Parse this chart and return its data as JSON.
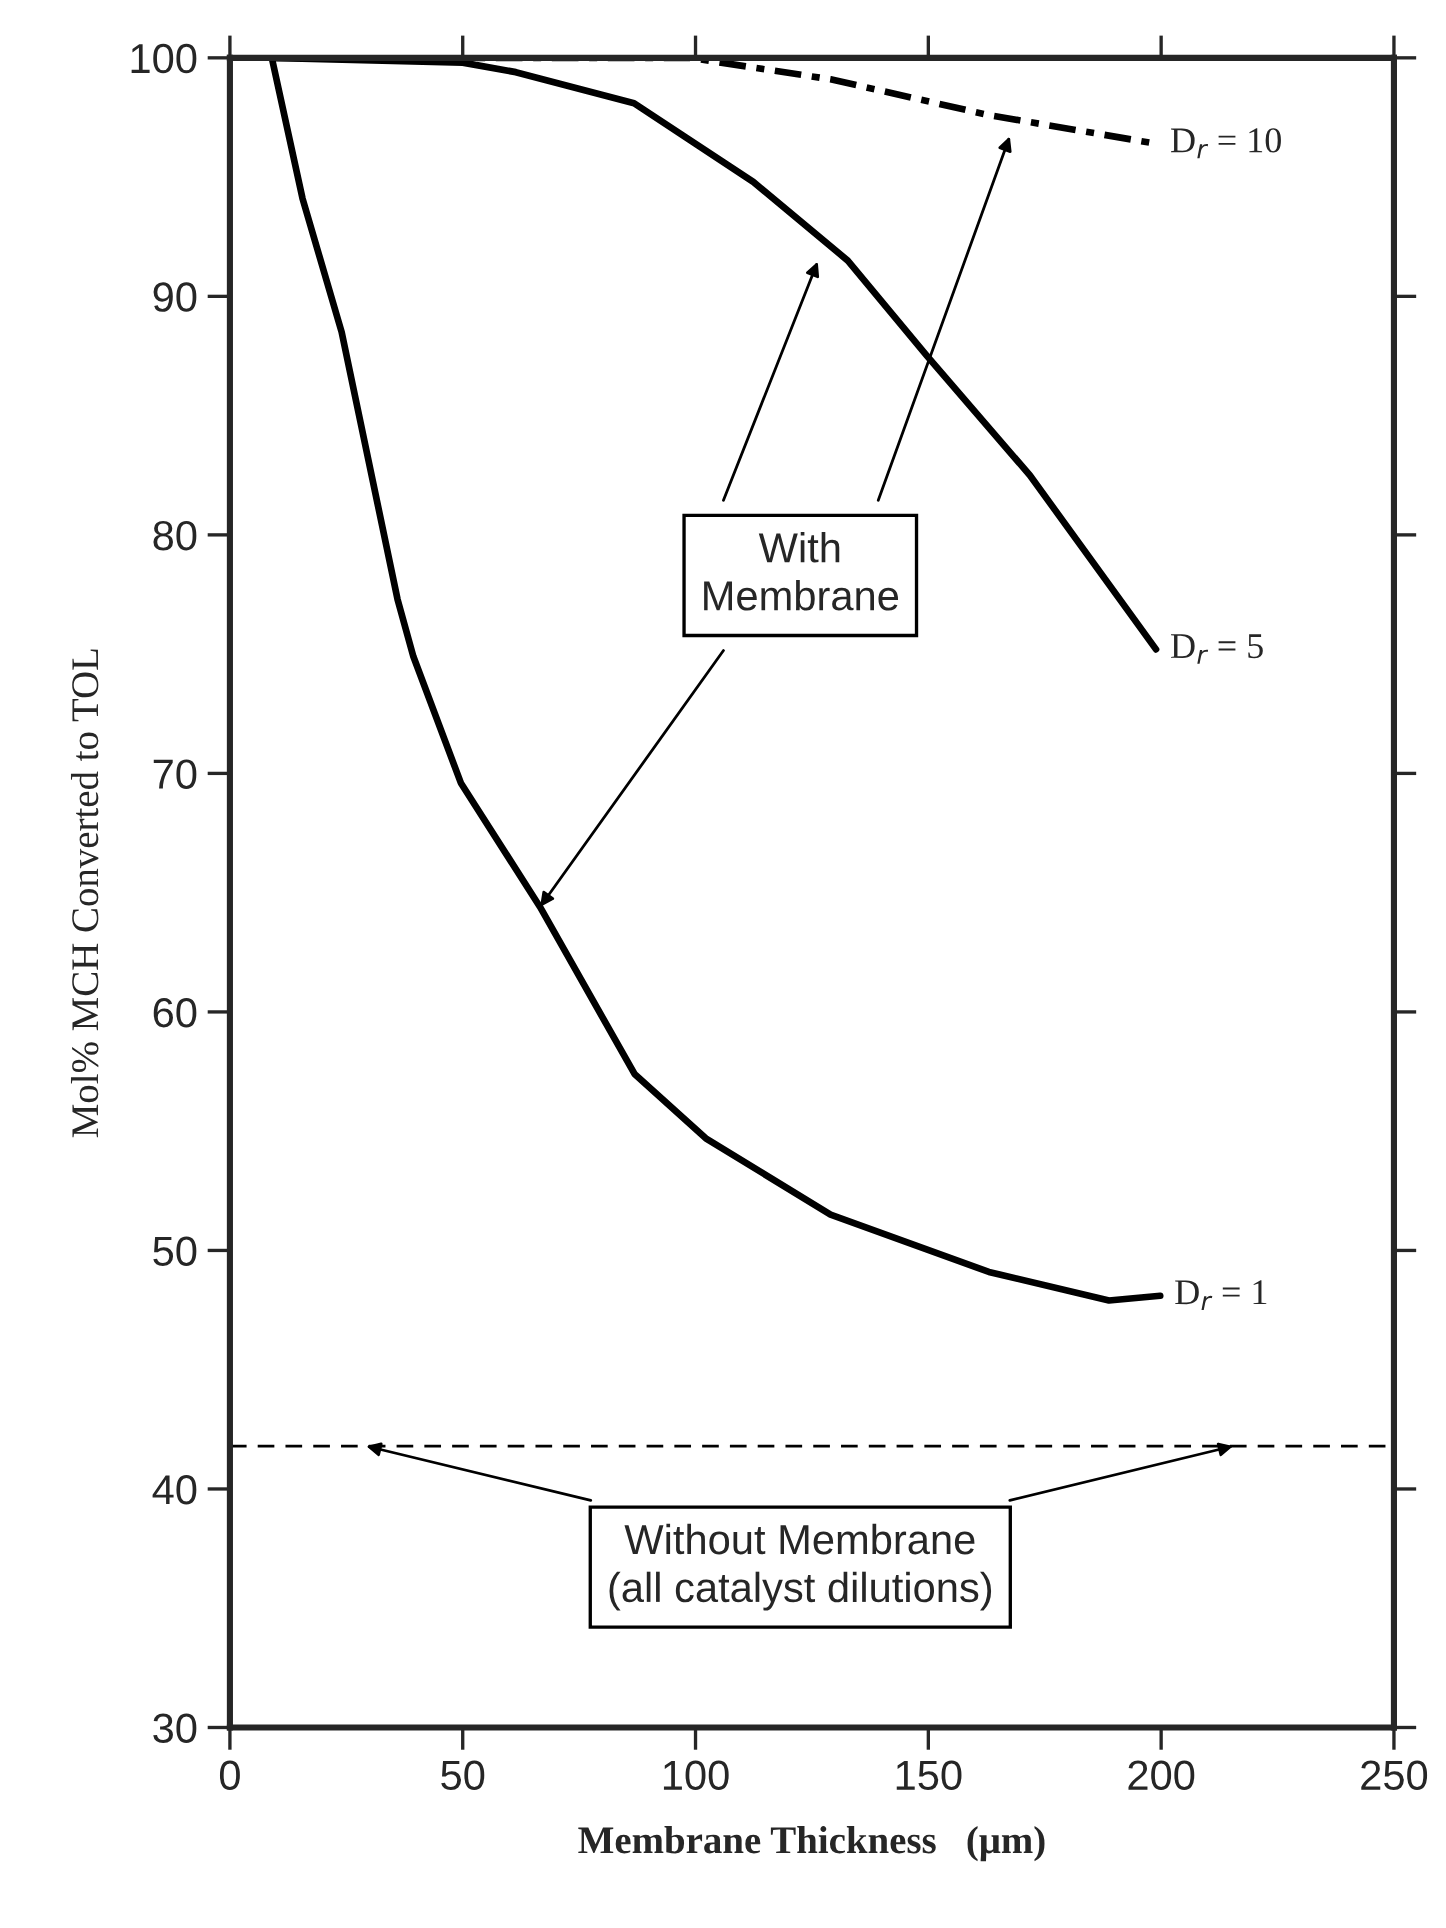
{
  "chart_data": {
    "type": "line",
    "xlabel": "Membrane Thickness   (μm)",
    "ylabel": "Mol% MCH Converted to TOL",
    "xlim": [
      0,
      250
    ],
    "xticks": [
      0,
      50,
      100,
      150,
      200,
      250
    ],
    "ylim": [
      30,
      100
    ],
    "yticks": [
      30,
      40,
      50,
      60,
      70,
      80,
      90,
      100
    ],
    "grid": false,
    "legend": false,
    "marker": "none",
    "series": [
      {
        "name": "D$_{r}$ = 1",
        "color": "#000000",
        "line_style": "solid",
        "x": [
          9,
          15.6,
          24,
          36,
          39.4,
          49.6,
          66.6,
          86.9,
          102.2,
          129,
          163,
          188.8,
          199.8
        ],
        "values": [
          100,
          94.1,
          88.5,
          77.3,
          74.9,
          69.6,
          64.4,
          57.4,
          54.7,
          51.5,
          49.1,
          47.9,
          48.1
        ]
      },
      {
        "name": "D$_{r}$ = 5",
        "color": "#000000",
        "line_style": "solid",
        "x": [
          9,
          50,
          61.4,
          86.8,
          112.4,
          132.7,
          149.7,
          171.8,
          198.9
        ],
        "values": [
          100,
          99.8,
          99.4,
          98.1,
          94.8,
          91.5,
          87.5,
          82.5,
          75.2
        ]
      },
      {
        "name": "D$_{r}$ = 10",
        "color": "#000000",
        "line_style": "dashed",
        "x": [
          9,
          50,
          98.8,
          129,
          163,
          198.9
        ],
        "values": [
          100,
          100,
          100,
          99.1,
          97.6,
          96.4
        ]
      }
    ],
    "ref_lines": [
      {
        "axis": "y",
        "value": 41.8,
        "label": "Without Membrane\n(all catalyst dilutions)",
        "color": "#000000",
        "line_style": "dashed"
      }
    ],
    "annotations": [
      {
        "text": "With\nMembrane",
        "x": 66.6,
        "y": 64.4
      }
    ]
  }
}
